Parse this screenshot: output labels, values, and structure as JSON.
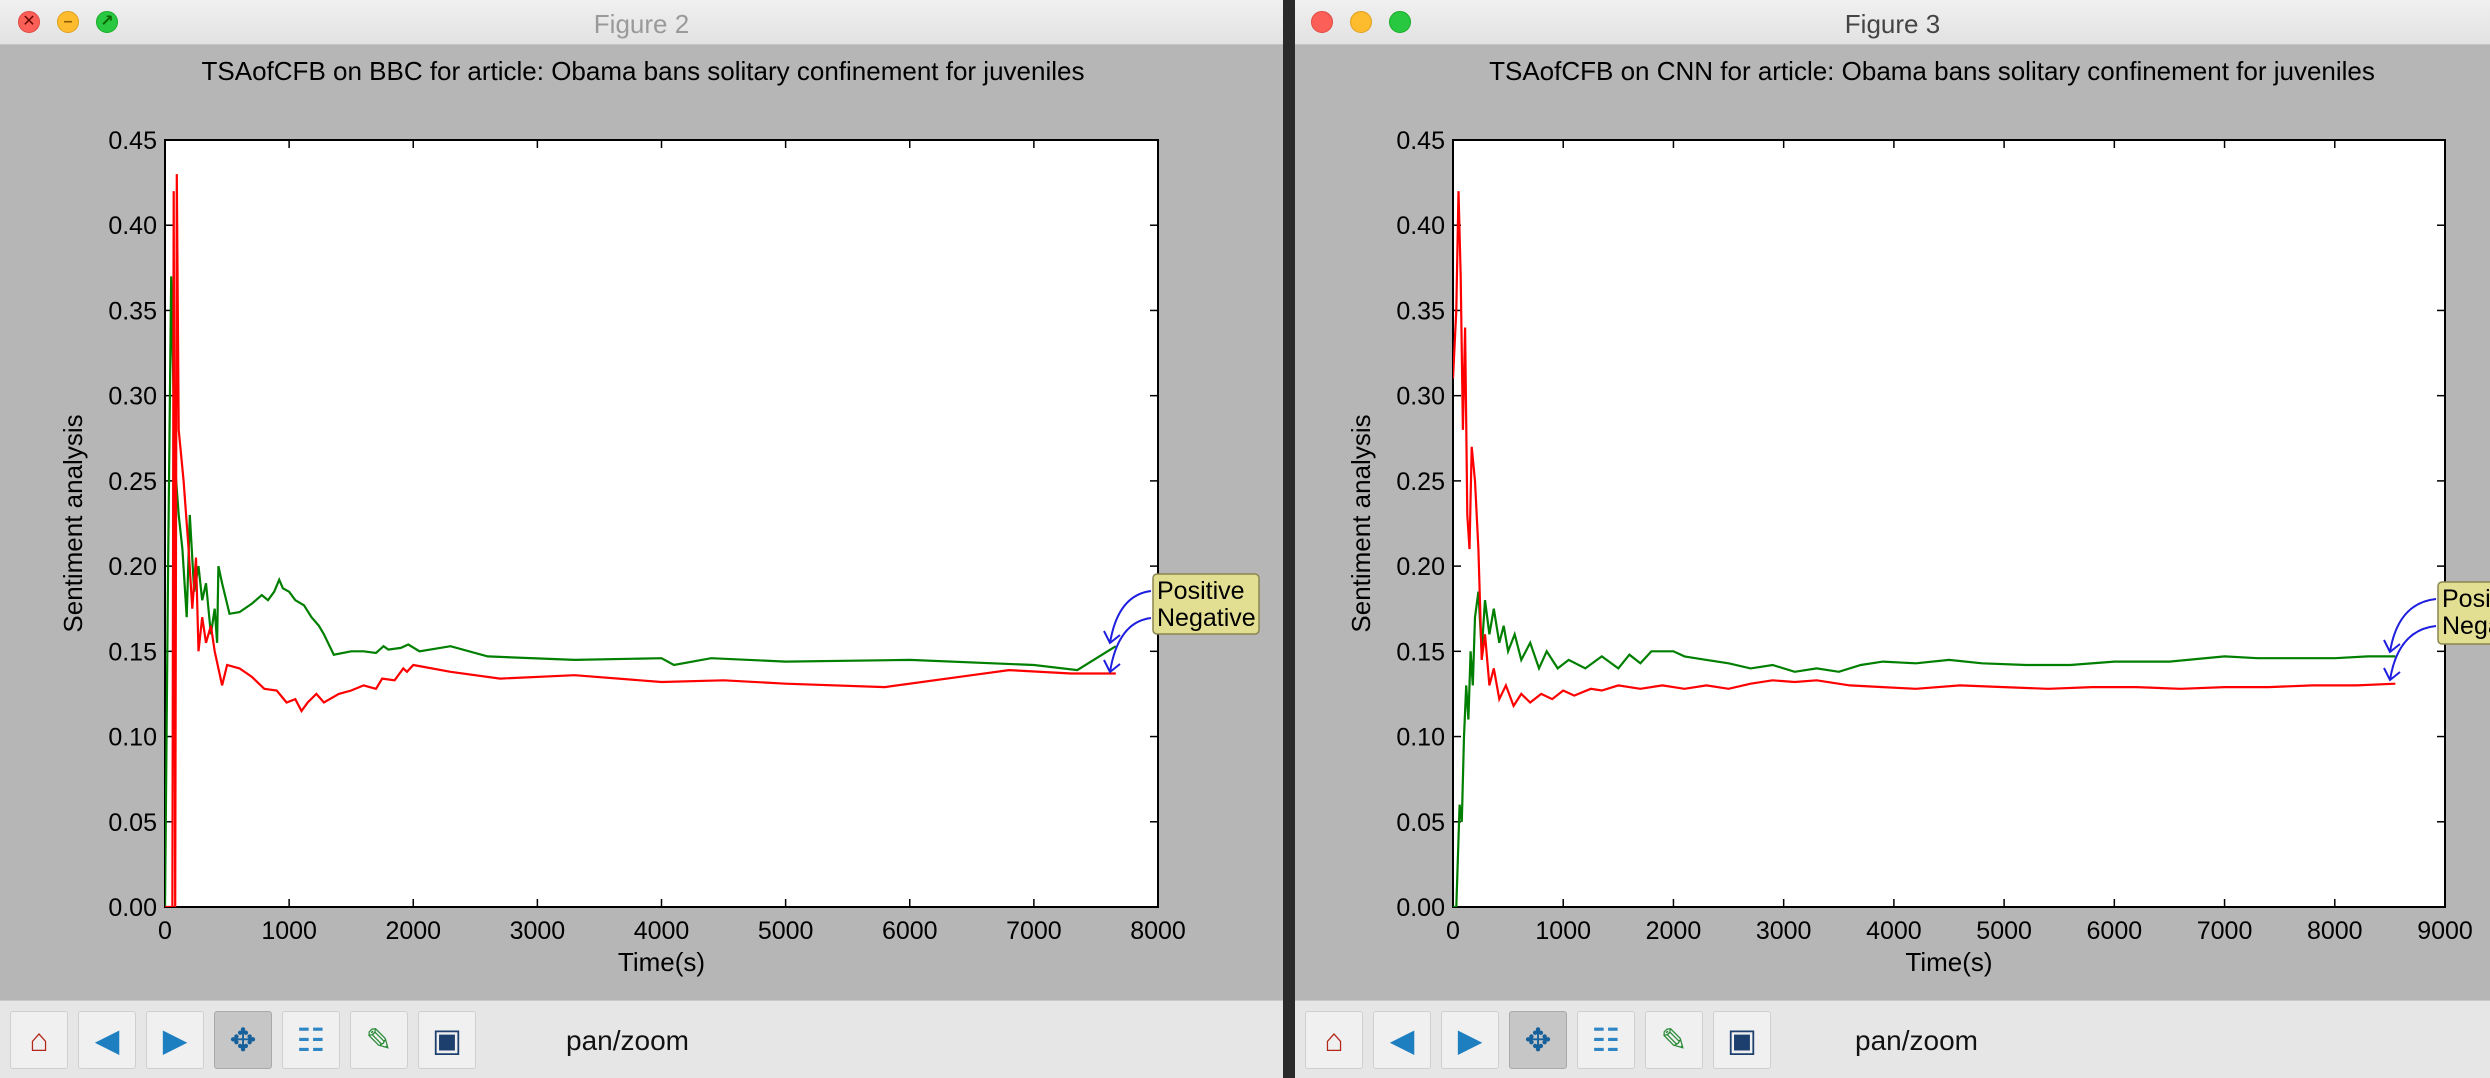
{
  "figures": [
    {
      "window_title": "Figure 2",
      "mode_label": "pan/zoom",
      "traffic_lights": [
        "close-icon",
        "minimize-icon",
        "fullscreen-icon"
      ],
      "toolbar_icons": [
        "home-icon",
        "back-arrow-icon",
        "forward-arrow-icon",
        "pan-icon",
        "configure-subplots-icon",
        "edit-axis-icon",
        "save-icon"
      ],
      "chart_data": {
        "type": "line",
        "title": "TSAofCFB on BBC for article: Obama bans solitary confinement for juveniles",
        "xlabel": "Time(s)",
        "ylabel": "Sentiment analysis",
        "xlim": [
          0,
          8000
        ],
        "ylim": [
          0,
          0.45
        ],
        "x_ticks": [
          "0",
          "1000",
          "2000",
          "3000",
          "4000",
          "5000",
          "6000",
          "7000",
          "8000"
        ],
        "y_ticks": [
          "0.00",
          "0.05",
          "0.10",
          "0.15",
          "0.20",
          "0.25",
          "0.30",
          "0.35",
          "0.40",
          "0.45"
        ],
        "grid": false,
        "legend_annotations": [
          "Positive",
          "Negative"
        ],
        "series": [
          {
            "name": "Positive",
            "color": "#007f00",
            "points": [
              [
                0,
                0
              ],
              [
                25,
                0.2
              ],
              [
                50,
                0.37
              ],
              [
                80,
                0.26
              ],
              [
                110,
                0.23
              ],
              [
                140,
                0.21
              ],
              [
                175,
                0.17
              ],
              [
                200,
                0.23
              ],
              [
                235,
                0.185
              ],
              [
                270,
                0.2
              ],
              [
                300,
                0.18
              ],
              [
                330,
                0.19
              ],
              [
                370,
                0.16
              ],
              [
                400,
                0.175
              ],
              [
                420,
                0.155
              ],
              [
                430,
                0.2
              ],
              [
                460,
                0.19
              ],
              [
                520,
                0.172
              ],
              [
                600,
                0.173
              ],
              [
                700,
                0.178
              ],
              [
                780,
                0.183
              ],
              [
                830,
                0.18
              ],
              [
                880,
                0.185
              ],
              [
                920,
                0.192
              ],
              [
                950,
                0.187
              ],
              [
                1000,
                0.185
              ],
              [
                1050,
                0.18
              ],
              [
                1120,
                0.177
              ],
              [
                1180,
                0.17
              ],
              [
                1240,
                0.165
              ],
              [
                1280,
                0.16
              ],
              [
                1360,
                0.148
              ],
              [
                1500,
                0.15
              ],
              [
                1600,
                0.15
              ],
              [
                1700,
                0.149
              ],
              [
                1760,
                0.153
              ],
              [
                1800,
                0.151
              ],
              [
                1900,
                0.152
              ],
              [
                1960,
                0.154
              ],
              [
                2050,
                0.15
              ],
              [
                2300,
                0.153
              ],
              [
                2600,
                0.147
              ],
              [
                3300,
                0.145
              ],
              [
                4000,
                0.146
              ],
              [
                4100,
                0.142
              ],
              [
                4400,
                0.146
              ],
              [
                5000,
                0.144
              ],
              [
                6000,
                0.145
              ],
              [
                7000,
                0.142
              ],
              [
                7350,
                0.139
              ],
              [
                7660,
                0.153
              ]
            ]
          },
          {
            "name": "Negative",
            "color": "#ff0000",
            "points": [
              [
                0,
                0
              ],
              [
                60,
                0
              ],
              [
                70,
                0.42
              ],
              [
                82,
                0.0
              ],
              [
                95,
                0.43
              ],
              [
                110,
                0.28
              ],
              [
                150,
                0.25
              ],
              [
                190,
                0.21
              ],
              [
                220,
                0.175
              ],
              [
                250,
                0.205
              ],
              [
                270,
                0.15
              ],
              [
                300,
                0.17
              ],
              [
                330,
                0.155
              ],
              [
                370,
                0.165
              ],
              [
                400,
                0.15
              ],
              [
                430,
                0.14
              ],
              [
                460,
                0.13
              ],
              [
                500,
                0.142
              ],
              [
                600,
                0.14
              ],
              [
                700,
                0.135
              ],
              [
                800,
                0.128
              ],
              [
                900,
                0.127
              ],
              [
                980,
                0.12
              ],
              [
                1050,
                0.122
              ],
              [
                1100,
                0.115
              ],
              [
                1150,
                0.12
              ],
              [
                1220,
                0.125
              ],
              [
                1280,
                0.12
              ],
              [
                1400,
                0.125
              ],
              [
                1500,
                0.127
              ],
              [
                1600,
                0.13
              ],
              [
                1700,
                0.128
              ],
              [
                1750,
                0.134
              ],
              [
                1850,
                0.133
              ],
              [
                1920,
                0.14
              ],
              [
                1950,
                0.138
              ],
              [
                2000,
                0.142
              ],
              [
                2300,
                0.138
              ],
              [
                2700,
                0.134
              ],
              [
                3300,
                0.136
              ],
              [
                4000,
                0.132
              ],
              [
                4500,
                0.133
              ],
              [
                5000,
                0.131
              ],
              [
                5800,
                0.129
              ],
              [
                6500,
                0.136
              ],
              [
                6800,
                0.139
              ],
              [
                7300,
                0.137
              ],
              [
                7660,
                0.137
              ]
            ]
          }
        ]
      }
    },
    {
      "window_title": "Figure 3",
      "mode_label": "pan/zoom",
      "traffic_lights": [
        "close-icon",
        "minimize-icon",
        "fullscreen-icon"
      ],
      "toolbar_icons": [
        "home-icon",
        "back-arrow-icon",
        "forward-arrow-icon",
        "pan-icon",
        "configure-subplots-icon",
        "edit-axis-icon",
        "save-icon"
      ],
      "chart_data": {
        "type": "line",
        "title": "TSAofCFB on CNN for article: Obama bans solitary confinement for juveniles",
        "xlabel": "Time(s)",
        "ylabel": "Sentiment analysis",
        "xlim": [
          0,
          9000
        ],
        "ylim": [
          0,
          0.45
        ],
        "x_ticks": [
          "0",
          "1000",
          "2000",
          "3000",
          "4000",
          "5000",
          "6000",
          "7000",
          "8000",
          "9000"
        ],
        "y_ticks": [
          "0.00",
          "0.05",
          "0.10",
          "0.15",
          "0.20",
          "0.25",
          "0.30",
          "0.35",
          "0.40",
          "0.45"
        ],
        "grid": false,
        "legend_annotations": [
          "Posit",
          "Nega"
        ],
        "series": [
          {
            "name": "Positive",
            "color": "#007f00",
            "points": [
              [
                0,
                0
              ],
              [
                30,
                0
              ],
              [
                60,
                0.06
              ],
              [
                80,
                0.05
              ],
              [
                100,
                0.1
              ],
              [
                120,
                0.13
              ],
              [
                140,
                0.11
              ],
              [
                160,
                0.15
              ],
              [
                180,
                0.13
              ],
              [
                200,
                0.17
              ],
              [
                230,
                0.185
              ],
              [
                260,
                0.15
              ],
              [
                290,
                0.18
              ],
              [
                330,
                0.16
              ],
              [
                370,
                0.175
              ],
              [
                420,
                0.155
              ],
              [
                460,
                0.165
              ],
              [
                500,
                0.15
              ],
              [
                560,
                0.16
              ],
              [
                620,
                0.145
              ],
              [
                700,
                0.155
              ],
              [
                780,
                0.14
              ],
              [
                850,
                0.15
              ],
              [
                950,
                0.14
              ],
              [
                1050,
                0.145
              ],
              [
                1200,
                0.14
              ],
              [
                1350,
                0.147
              ],
              [
                1500,
                0.14
              ],
              [
                1600,
                0.148
              ],
              [
                1700,
                0.143
              ],
              [
                1800,
                0.15
              ],
              [
                2000,
                0.15
              ],
              [
                2100,
                0.147
              ],
              [
                2300,
                0.145
              ],
              [
                2500,
                0.143
              ],
              [
                2700,
                0.14
              ],
              [
                2900,
                0.142
              ],
              [
                3100,
                0.138
              ],
              [
                3300,
                0.14
              ],
              [
                3500,
                0.138
              ],
              [
                3700,
                0.142
              ],
              [
                3900,
                0.144
              ],
              [
                4200,
                0.143
              ],
              [
                4500,
                0.145
              ],
              [
                4800,
                0.143
              ],
              [
                5200,
                0.142
              ],
              [
                5600,
                0.142
              ],
              [
                6000,
                0.144
              ],
              [
                6500,
                0.144
              ],
              [
                7000,
                0.147
              ],
              [
                7300,
                0.146
              ],
              [
                7600,
                0.146
              ],
              [
                8000,
                0.146
              ],
              [
                8300,
                0.147
              ],
              [
                8550,
                0.147
              ]
            ]
          },
          {
            "name": "Negative",
            "color": "#ff0000",
            "points": [
              [
                0,
                0.31
              ],
              [
                30,
                0.35
              ],
              [
                50,
                0.42
              ],
              [
                70,
                0.37
              ],
              [
                90,
                0.28
              ],
              [
                110,
                0.34
              ],
              [
                130,
                0.23
              ],
              [
                150,
                0.21
              ],
              [
                170,
                0.27
              ],
              [
                200,
                0.25
              ],
              [
                230,
                0.21
              ],
              [
                260,
                0.145
              ],
              [
                290,
                0.16
              ],
              [
                330,
                0.13
              ],
              [
                370,
                0.14
              ],
              [
                420,
                0.122
              ],
              [
                480,
                0.13
              ],
              [
                550,
                0.118
              ],
              [
                620,
                0.125
              ],
              [
                700,
                0.12
              ],
              [
                800,
                0.125
              ],
              [
                900,
                0.122
              ],
              [
                1000,
                0.127
              ],
              [
                1100,
                0.124
              ],
              [
                1250,
                0.128
              ],
              [
                1350,
                0.127
              ],
              [
                1500,
                0.13
              ],
              [
                1700,
                0.128
              ],
              [
                1900,
                0.13
              ],
              [
                2100,
                0.128
              ],
              [
                2300,
                0.13
              ],
              [
                2500,
                0.128
              ],
              [
                2700,
                0.131
              ],
              [
                2900,
                0.133
              ],
              [
                3100,
                0.132
              ],
              [
                3300,
                0.133
              ],
              [
                3600,
                0.13
              ],
              [
                3900,
                0.129
              ],
              [
                4200,
                0.128
              ],
              [
                4600,
                0.13
              ],
              [
                5000,
                0.129
              ],
              [
                5400,
                0.128
              ],
              [
                5800,
                0.129
              ],
              [
                6200,
                0.129
              ],
              [
                6600,
                0.128
              ],
              [
                7000,
                0.129
              ],
              [
                7400,
                0.129
              ],
              [
                7800,
                0.13
              ],
              [
                8200,
                0.13
              ],
              [
                8550,
                0.131
              ]
            ]
          }
        ]
      }
    }
  ]
}
